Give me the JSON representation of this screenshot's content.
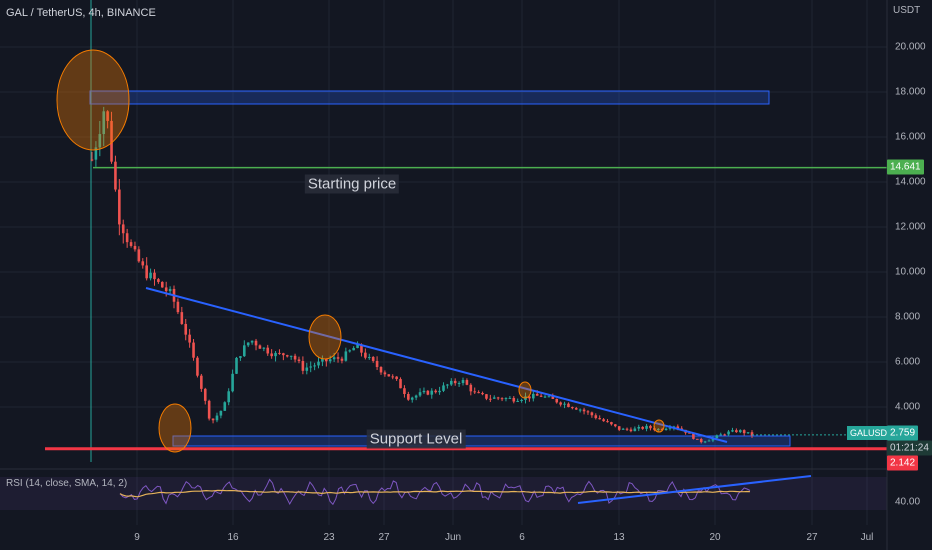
{
  "header": {
    "title": "GAL / TetherUS, 4h, BINANCE",
    "unit": "USDT",
    "rsi_title": "RSI (14, close, SMA, 14, 2)"
  },
  "price_axis": {
    "ticks": [
      "20.000",
      "18.000",
      "16.000",
      "14.000",
      "12.000",
      "10.000",
      "8.000",
      "6.000",
      "4.000"
    ],
    "rsi_tick": "40.00"
  },
  "time_axis": {
    "ticks": [
      "9",
      "16",
      "23",
      "27",
      "Jun",
      "6",
      "13",
      "20",
      "27",
      "Jul"
    ]
  },
  "tags": {
    "starting_price": "14.641",
    "symbol": "GALUSDT",
    "last_price": "2.759",
    "countdown": "01:21:24",
    "support_price": "2.142"
  },
  "annotations": {
    "starting_price_label": "Starting price",
    "support_label": "Support Level"
  },
  "colors": {
    "background": "#131722",
    "up_candle": "#26a69a",
    "down_candle": "#ef5350",
    "trendline": "#2962ff",
    "starting_price_line": "#4caf50",
    "support_line": "#f23645",
    "rsi_line": "#7e57c2",
    "rsi_sma": "#e6b35a",
    "highlight_circle": "#f57c00"
  },
  "chart_data": {
    "type": "candlestick",
    "symbol": "GALUSDT",
    "timeframe": "4h",
    "exchange": "BINANCE",
    "close_path": [
      [
        "2022-05-03",
        15.0
      ],
      [
        "2022-05-04",
        17.5
      ],
      [
        "2022-05-05",
        12.5
      ],
      [
        "2022-05-06",
        11.0
      ],
      [
        "2022-05-07",
        10.0
      ],
      [
        "2022-05-08",
        9.5
      ],
      [
        "2022-05-09",
        9.0
      ],
      [
        "2022-05-10",
        7.5
      ],
      [
        "2022-05-11",
        5.5
      ],
      [
        "2022-05-12",
        3.3
      ],
      [
        "2022-05-13",
        4.0
      ],
      [
        "2022-05-14",
        6.2
      ],
      [
        "2022-05-15",
        7.0
      ],
      [
        "2022-05-16",
        6.6
      ],
      [
        "2022-05-17",
        6.3
      ],
      [
        "2022-05-18",
        6.4
      ],
      [
        "2022-05-19",
        5.7
      ],
      [
        "2022-05-20",
        5.9
      ],
      [
        "2022-05-21",
        6.1
      ],
      [
        "2022-05-22",
        6.2
      ],
      [
        "2022-05-23",
        6.7
      ],
      [
        "2022-05-24",
        6.1
      ],
      [
        "2022-05-25",
        5.6
      ],
      [
        "2022-05-26",
        5.2
      ],
      [
        "2022-05-27",
        4.4
      ],
      [
        "2022-05-28",
        4.6
      ],
      [
        "2022-05-29",
        4.7
      ],
      [
        "2022-05-30",
        5.0
      ],
      [
        "2022-05-31",
        5.2
      ],
      [
        "2022-06-01",
        4.6
      ],
      [
        "2022-06-02",
        4.4
      ],
      [
        "2022-06-03",
        4.4
      ],
      [
        "2022-06-04",
        4.35
      ],
      [
        "2022-06-05",
        4.45
      ],
      [
        "2022-06-06",
        4.5
      ],
      [
        "2022-06-07",
        4.3
      ],
      [
        "2022-06-08",
        4.1
      ],
      [
        "2022-06-09",
        3.9
      ],
      [
        "2022-06-10",
        3.6
      ],
      [
        "2022-06-11",
        3.3
      ],
      [
        "2022-06-12",
        3.0
      ],
      [
        "2022-06-13",
        3.0
      ],
      [
        "2022-06-14",
        3.1
      ],
      [
        "2022-06-15",
        3.0
      ],
      [
        "2022-06-16",
        3.2
      ],
      [
        "2022-06-17",
        2.9
      ],
      [
        "2022-06-18",
        2.45
      ],
      [
        "2022-06-19",
        2.6
      ],
      [
        "2022-06-20",
        2.85
      ],
      [
        "2022-06-21",
        2.95
      ],
      [
        "2022-06-22",
        2.76
      ]
    ],
    "horizontal_lines": [
      {
        "label": "Starting price",
        "price": 14.641
      },
      {
        "label": "Support Level",
        "price": 2.142
      }
    ],
    "last_price": 2.759,
    "y_axis": {
      "min": 1.5,
      "max": 21.5,
      "ticks": [
        4,
        6,
        8,
        10,
        12,
        14,
        16,
        18,
        20
      ]
    },
    "x_ticks": [
      "9",
      "16",
      "23",
      "27",
      "Jun",
      "6",
      "13",
      "20",
      "27",
      "Jul"
    ],
    "rsi": {
      "length": 14,
      "source": "close",
      "ma": "SMA",
      "ma_length": 14,
      "tick": 40
    }
  }
}
